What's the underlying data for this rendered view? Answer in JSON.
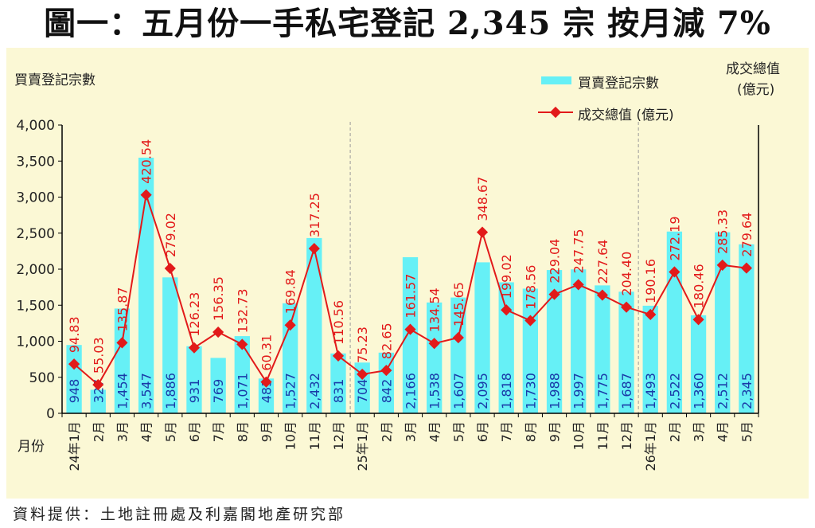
{
  "title": "圖一：五月份一手私宅登記 2,345 宗  按月減 7%",
  "footer": "資料提供：土地註冊處及利嘉閣地產研究部",
  "colors": {
    "panel_bg": "#fbf8d5",
    "bar": "#66f0f6",
    "line": "#e21a1a",
    "bar_label": "#1a3aa8"
  },
  "chart_data": {
    "type": "bar+line",
    "ylabel_left": "買賣登記宗數",
    "ylabel_right": [
      "成交總值",
      "(億元)"
    ],
    "xlabel": "月份",
    "ylim": [
      0,
      4000
    ],
    "yticks": [
      "0",
      "500",
      "1,000",
      "1,500",
      "2,000",
      "2,500",
      "3,000",
      "3,500",
      "4,000"
    ],
    "grid": false,
    "legend_position": "top-right",
    "categories": [
      "24年1月",
      "2月",
      "3月",
      "4月",
      "5月",
      "6月",
      "7月",
      "8月",
      "9月",
      "10月",
      "11月",
      "12月",
      "25年1月",
      "2月",
      "3月",
      "4月",
      "5月",
      "6月",
      "7月",
      "8月",
      "9月",
      "10月",
      "11月",
      "12月",
      "26年1月",
      "2月",
      "3月",
      "4月",
      "5月"
    ],
    "series": [
      {
        "name": "買賣登記宗數",
        "type": "bar",
        "values": [
          948,
          327,
          1454,
          3547,
          1886,
          931,
          769,
          1071,
          483,
          1527,
          2432,
          831,
          704,
          842,
          2166,
          1538,
          1607,
          2095,
          1818,
          1730,
          1988,
          1997,
          1775,
          1687,
          1493,
          2522,
          1360,
          2512,
          2345
        ],
        "labels": [
          "948",
          "327",
          "1,454",
          "3,547",
          "1,886",
          "931",
          "769",
          "1,071",
          "483",
          "1,527",
          "2,432",
          "831",
          "704",
          "842",
          "2,166",
          "1,538",
          "1,607",
          "2,095",
          "1,818",
          "1,730",
          "1,988",
          "1,997",
          "1,775",
          "1,687",
          "1,493",
          "2,522",
          "1,360",
          "2,512",
          "2,345"
        ]
      },
      {
        "name": "成交總值 (億元)",
        "type": "line",
        "values": [
          94.83,
          55.03,
          135.87,
          420.54,
          279.02,
          126.23,
          156.35,
          132.73,
          60.31,
          169.84,
          317.25,
          110.56,
          75.23,
          82.65,
          161.57,
          134.54,
          145.65,
          348.67,
          199.02,
          178.56,
          229.04,
          247.75,
          227.64,
          204.4,
          190.16,
          272.19,
          180.46,
          285.33,
          279.64
        ],
        "labels": [
          "94.83",
          "55.03",
          "135.87",
          "420.54",
          "279.02",
          "126.23",
          "156.35",
          "132.73",
          "60.31",
          "169.84",
          "317.25",
          "110.56",
          "75.23",
          "82.65",
          "161.57",
          "134.54",
          "145.65",
          "348.67",
          "199.02",
          "178.56",
          "229.04",
          "247.75",
          "227.64",
          "204.40",
          "190.16",
          "272.19",
          "180.46",
          "285.33",
          "279.64"
        ]
      }
    ]
  }
}
